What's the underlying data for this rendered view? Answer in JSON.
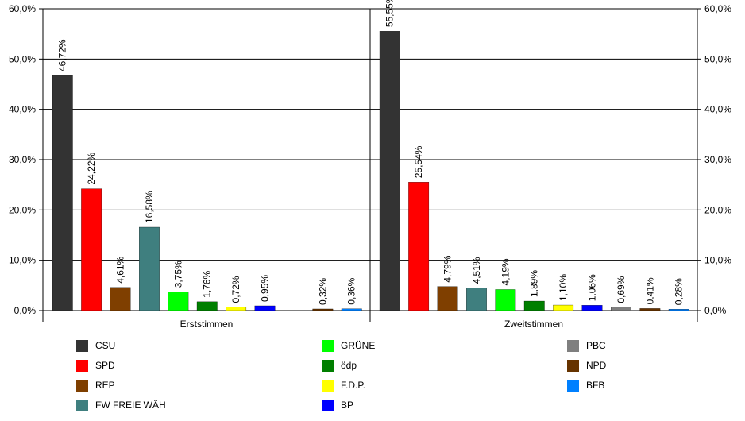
{
  "chart_data": {
    "type": "bar",
    "categories": [
      "Erststimmen",
      "Zweitstimmen"
    ],
    "ylim": [
      0,
      60
    ],
    "yticks": [
      "0,0%",
      "10,0%",
      "20,0%",
      "30,0%",
      "40,0%",
      "50,0%",
      "60,0%"
    ],
    "grid": true,
    "legend_position": "bottom",
    "series": [
      {
        "name": "CSU",
        "color": "#333333",
        "values": [
          46.72,
          55.55
        ],
        "labels": [
          "46,72%",
          "55,55%"
        ]
      },
      {
        "name": "SPD",
        "color": "#ff0000",
        "values": [
          24.22,
          25.54
        ],
        "labels": [
          "24,22%",
          "25,54%"
        ]
      },
      {
        "name": "REP",
        "color": "#7f3f00",
        "values": [
          4.61,
          4.79
        ],
        "labels": [
          "4,61%",
          "4,79%"
        ]
      },
      {
        "name": "FW FREIE WÄH",
        "color": "#3f7f7f",
        "values": [
          16.58,
          4.51
        ],
        "labels": [
          "16,58%",
          "4,51%"
        ]
      },
      {
        "name": "GRÜNE",
        "color": "#00ff00",
        "values": [
          3.75,
          4.19
        ],
        "labels": [
          "3,75%",
          "4,19%"
        ]
      },
      {
        "name": "ödp",
        "color": "#007f00",
        "values": [
          1.76,
          1.89
        ],
        "labels": [
          "1,76%",
          "1,89%"
        ]
      },
      {
        "name": "F.D.P.",
        "color": "#ffff00",
        "values": [
          0.72,
          1.1
        ],
        "labels": [
          "0,72%",
          "1,10%"
        ]
      },
      {
        "name": "BP",
        "color": "#0000ff",
        "values": [
          0.95,
          1.06
        ],
        "labels": [
          "0,95%",
          "1,06%"
        ]
      },
      {
        "name": "PBC",
        "color": "#7f7f7f",
        "values": [
          null,
          0.69
        ],
        "labels": [
          "",
          "0,69%"
        ]
      },
      {
        "name": "NPD",
        "color": "#663300",
        "values": [
          0.32,
          0.41
        ],
        "labels": [
          "0,32%",
          "0,41%"
        ]
      },
      {
        "name": "BFB",
        "color": "#0080ff",
        "values": [
          0.36,
          0.28
        ],
        "labels": [
          "0,36%",
          "0,28%"
        ]
      }
    ]
  }
}
